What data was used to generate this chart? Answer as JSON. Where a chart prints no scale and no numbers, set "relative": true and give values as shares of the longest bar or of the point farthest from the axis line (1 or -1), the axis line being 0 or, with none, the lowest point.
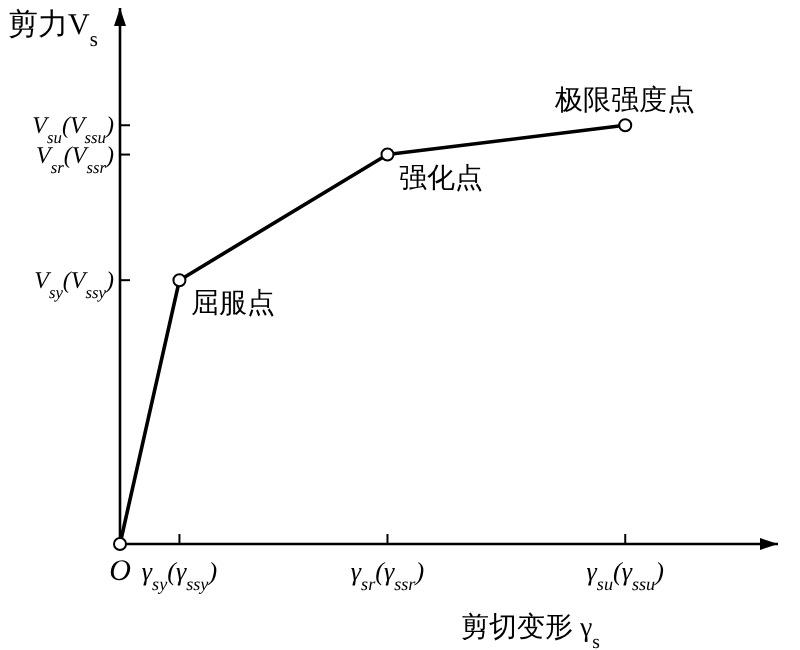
{
  "chart_data": {
    "type": "line",
    "relative": true,
    "ylabel": "剪力V$_{s}$",
    "xlabel": "剪切变形 γ$_{s}$",
    "categories": [
      "O",
      null,
      "γ$_{sy}$(γ$_{ssy}$)",
      null,
      null,
      null,
      null,
      null,
      null,
      "γ$_{sr}$(γ$_{ssr}$)",
      null,
      null,
      null,
      null,
      null,
      null,
      null,
      "γ$_{su}$(γ$_{ssu}$)"
    ],
    "series": [
      {
        "color": "#000000",
        "values": [
          0,
          null,
          0.63,
          null,
          null,
          null,
          null,
          null,
          null,
          0.93,
          null,
          null,
          null,
          null,
          null,
          null,
          null,
          1.0
        ]
      }
    ],
    "annotations": [
      "V$_{sy}$(V$_{ssy}$)",
      "V$_{sr}$(V$_{ssr}$)",
      "V$_{su}$(V$_{ssu}$)",
      {
        "text": "屈服点",
        "x": "γ$_{sy}$(γ$_{ssy}$)",
        "y": 0.63
      },
      {
        "text": "强化点",
        "x": "γ$_{sr}$(γ$_{ssr}$)",
        "y": 0.93
      },
      {
        "text": "极限强度点",
        "x": "γ$_{su}$(γ$_{ssu}$)",
        "y": 1.0
      }
    ],
    "marker": "circle"
  }
}
